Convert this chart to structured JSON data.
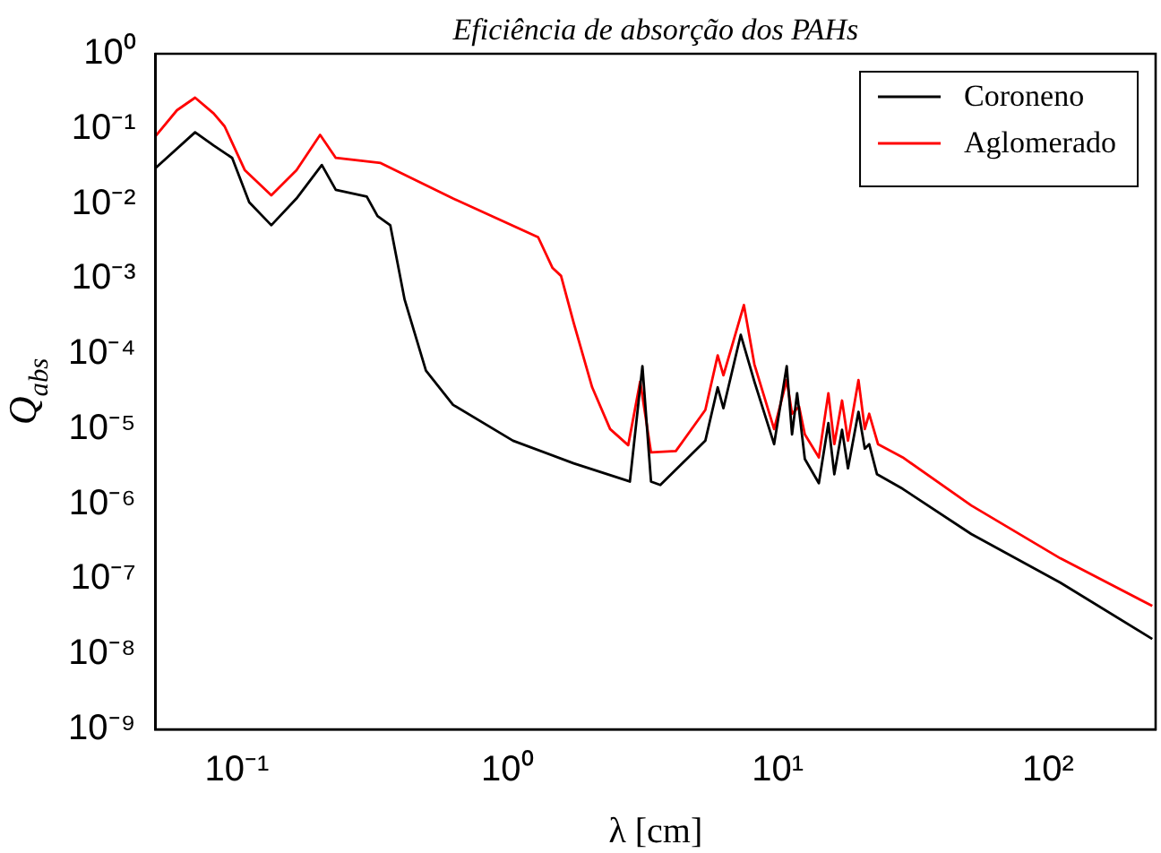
{
  "chart_data": {
    "type": "line",
    "title": "Eficiência de absorção dos PAHs",
    "xlabel": "λ [cm]",
    "ylabel": "Q$_{abs}$",
    "log": "xy",
    "grid": false,
    "legend": "top right",
    "marker": "none",
    "line_style": "solid",
    "xlim": [
      0.05,
      250
    ],
    "ylim": [
      1e-09,
      1
    ],
    "xticks": [
      {
        "value": 0.1,
        "label": "10⁻¹"
      },
      {
        "value": 1,
        "label": "10⁰"
      },
      {
        "value": 10,
        "label": "10¹"
      },
      {
        "value": 100,
        "label": "10²"
      }
    ],
    "yticks": [
      {
        "value": 1e-09,
        "label": "10⁻⁹"
      },
      {
        "value": 1e-08,
        "label": "10⁻⁸"
      },
      {
        "value": 1e-07,
        "label": "10⁻⁷"
      },
      {
        "value": 1e-06,
        "label": "10⁻⁶"
      },
      {
        "value": 1e-05,
        "label": "10⁻⁵"
      },
      {
        "value": 0.0001,
        "label": "10⁻⁴"
      },
      {
        "value": 0.001,
        "label": "10⁻³"
      },
      {
        "value": 0.01,
        "label": "10⁻²"
      },
      {
        "value": 0.1,
        "label": "10⁻¹"
      },
      {
        "value": 1,
        "label": "10⁰"
      }
    ],
    "series": [
      {
        "name": "Coroneno",
        "color": "#000000",
        "x": [
          0.05,
          0.07,
          0.082,
          0.096,
          0.111,
          0.134,
          0.166,
          0.206,
          0.232,
          0.302,
          0.331,
          0.369,
          0.417,
          0.5,
          0.63,
          1.05,
          1.76,
          2.84,
          3.16,
          3.4,
          3.68,
          5.4,
          6.0,
          6.3,
          7.3,
          8.2,
          9.7,
          10.8,
          11.3,
          11.8,
          12.6,
          14.2,
          15.4,
          16.2,
          17.3,
          18.2,
          19.9,
          21,
          21.8,
          23.3,
          29,
          52,
          111,
          243
        ],
        "values": [
          0.03,
          0.09,
          0.06,
          0.041,
          0.0105,
          0.0052,
          0.0118,
          0.033,
          0.0154,
          0.0125,
          0.0069,
          0.0052,
          0.00053,
          6e-05,
          2.1e-05,
          7e-06,
          3.5e-06,
          2e-06,
          6.9e-05,
          2e-06,
          1.8e-06,
          7e-06,
          3.6e-05,
          1.9e-05,
          0.00018,
          4.3e-05,
          6.3e-06,
          6.9e-05,
          8.5e-06,
          3e-05,
          4e-06,
          1.9e-06,
          1.2e-05,
          2.5e-06,
          9.8e-06,
          3e-06,
          1.7e-05,
          5.5e-06,
          6.3e-06,
          2.5e-06,
          1.6e-06,
          4e-07,
          9e-08,
          1.6e-08
        ]
      },
      {
        "name": "Aglomerado",
        "color": "#ff0000",
        "x": [
          0.05,
          0.06,
          0.07,
          0.082,
          0.09,
          0.107,
          0.134,
          0.166,
          0.203,
          0.232,
          0.34,
          0.63,
          1.3,
          1.47,
          1.58,
          1.76,
          2.06,
          2.4,
          2.8,
          3.1,
          3.4,
          4.2,
          5.4,
          6.0,
          6.3,
          7.5,
          8.2,
          9.7,
          10.8,
          11.3,
          12,
          12.6,
          14.2,
          15.4,
          16.2,
          17.3,
          18.2,
          19.9,
          21,
          21.8,
          23.5,
          29,
          52,
          111,
          243
        ],
        "values": [
          0.08,
          0.177,
          0.26,
          0.16,
          0.108,
          0.028,
          0.013,
          0.028,
          0.083,
          0.041,
          0.035,
          0.0118,
          0.0036,
          0.0014,
          0.0011,
          0.00026,
          3.6e-05,
          1e-05,
          6.1e-06,
          4.3e-05,
          4.9e-06,
          5.1e-06,
          1.8e-05,
          9.6e-05,
          5.2e-05,
          0.00045,
          7.3e-05,
          1e-05,
          4.5e-05,
          1.6e-05,
          2e-05,
          8.5e-06,
          4.2e-06,
          3e-05,
          6.3e-06,
          2.4e-05,
          7e-06,
          4.5e-05,
          1e-05,
          1.6e-05,
          6.3e-06,
          4.2e-06,
          9.6e-07,
          1.9e-07,
          4.4e-08
        ]
      }
    ]
  }
}
